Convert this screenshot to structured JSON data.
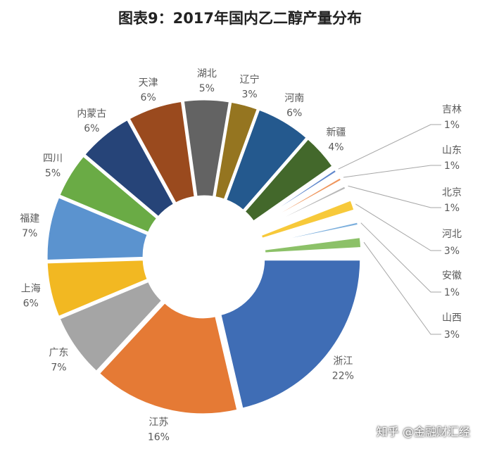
{
  "chart_data": {
    "type": "pie",
    "subtype": "donut",
    "title": "图表9：2017年国内乙二醇产量分布",
    "unit": "%",
    "legend": "none",
    "categories": [
      "浙江",
      "江苏",
      "广东",
      "上海",
      "福建",
      "四川",
      "内蒙古",
      "天津",
      "湖北",
      "辽宁",
      "河南",
      "新疆",
      "吉林",
      "山东",
      "北京",
      "河北",
      "安徽",
      "山西"
    ],
    "values": [
      22,
      16,
      7,
      6,
      7,
      5,
      6,
      6,
      5,
      3,
      6,
      4,
      1,
      1,
      1,
      3,
      1,
      3
    ],
    "colors": [
      "#3f6db5",
      "#e57a35",
      "#a5a5a5",
      "#f2b822",
      "#5b93cf",
      "#6aab45",
      "#264478",
      "#9a4a1e",
      "#636363",
      "#957520",
      "#24598e",
      "#43682b",
      "#5f87cc",
      "#ef955c",
      "#b7b7b7",
      "#f7c93a",
      "#7cafdd",
      "#8cc168"
    ]
  },
  "watermark": "知乎 @金融财汇经"
}
